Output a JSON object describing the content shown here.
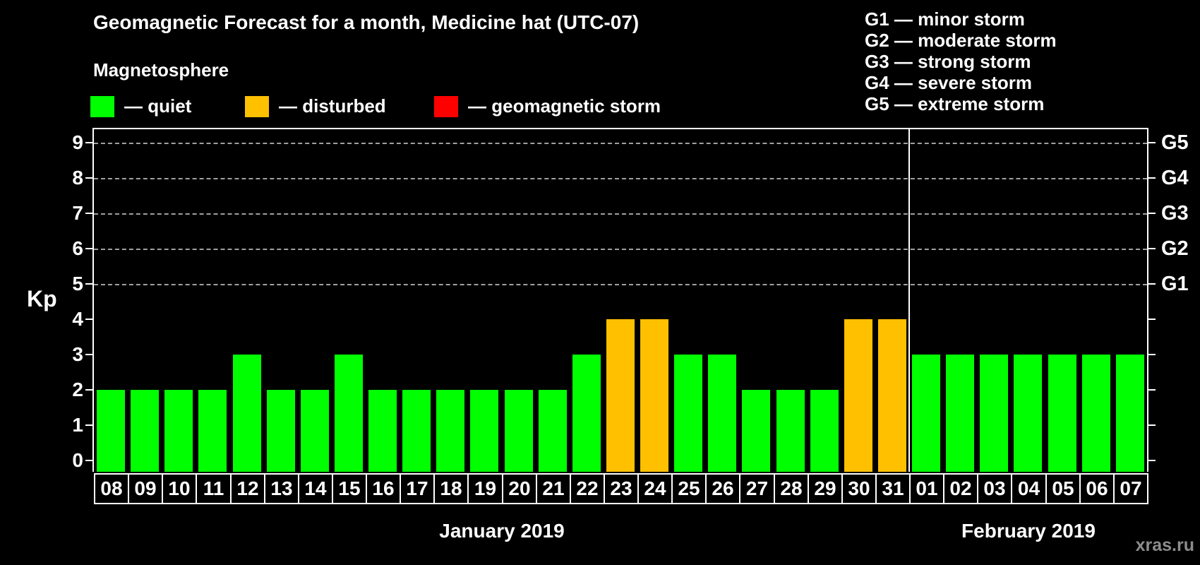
{
  "header": {
    "title": "Geomagnetic Forecast for a month, Medicine hat (UTC-07)"
  },
  "magnetosphere_legend": {
    "heading": "Magnetosphere",
    "items": [
      {
        "name": "quiet",
        "label": "— quiet",
        "color": "#00FF00"
      },
      {
        "name": "disturbed",
        "label": "— disturbed",
        "color": "#FFC000"
      },
      {
        "name": "geomagnetic-storm",
        "label": "— geomagnetic storm",
        "color": "#FF0000"
      }
    ]
  },
  "storm_scale_legend": [
    "G1 — minor storm",
    "G2 — moderate storm",
    "G3 — strong storm",
    "G4 — severe storm",
    "G5 — extreme storm"
  ],
  "watermark": "xras.ru",
  "colors": {
    "background": "#000000",
    "text": "#FFFFFF",
    "quiet": "#00FF00",
    "disturbed": "#FFC000",
    "storm": "#FF0000",
    "gridline": "#A0A0A0",
    "watermark_text": "#8C8C8C"
  },
  "chart_data": {
    "type": "bar",
    "ylabel": "Kp",
    "ylim": [
      -0.32,
      9.38
    ],
    "yticks": [
      0,
      1,
      2,
      3,
      4,
      5,
      6,
      7,
      8,
      9
    ],
    "gridlines_at_kp": [
      5,
      6,
      7,
      8,
      9
    ],
    "grid": "dashed horizontal lines only at storm levels Kp 5-9",
    "legend_position": "top-left",
    "right_axis": [
      {
        "kp": 5,
        "label": "G1"
      },
      {
        "kp": 6,
        "label": "G2"
      },
      {
        "kp": 7,
        "label": "G3"
      },
      {
        "kp": 8,
        "label": "G4"
      },
      {
        "kp": 9,
        "label": "G5"
      }
    ],
    "months": [
      {
        "label": "January 2019",
        "start_index": 0,
        "day_count": 24
      },
      {
        "label": "February 2019",
        "start_index": 24,
        "day_count": 7
      }
    ],
    "bars": [
      {
        "day": "08",
        "month": "January 2019",
        "kp": 2,
        "state": "quiet"
      },
      {
        "day": "09",
        "month": "January 2019",
        "kp": 2,
        "state": "quiet"
      },
      {
        "day": "10",
        "month": "January 2019",
        "kp": 2,
        "state": "quiet"
      },
      {
        "day": "11",
        "month": "January 2019",
        "kp": 2,
        "state": "quiet"
      },
      {
        "day": "12",
        "month": "January 2019",
        "kp": 3,
        "state": "quiet"
      },
      {
        "day": "13",
        "month": "January 2019",
        "kp": 2,
        "state": "quiet"
      },
      {
        "day": "14",
        "month": "January 2019",
        "kp": 2,
        "state": "quiet"
      },
      {
        "day": "15",
        "month": "January 2019",
        "kp": 3,
        "state": "quiet"
      },
      {
        "day": "16",
        "month": "January 2019",
        "kp": 2,
        "state": "quiet"
      },
      {
        "day": "17",
        "month": "January 2019",
        "kp": 2,
        "state": "quiet"
      },
      {
        "day": "18",
        "month": "January 2019",
        "kp": 2,
        "state": "quiet"
      },
      {
        "day": "19",
        "month": "January 2019",
        "kp": 2,
        "state": "quiet"
      },
      {
        "day": "20",
        "month": "January 2019",
        "kp": 2,
        "state": "quiet"
      },
      {
        "day": "21",
        "month": "January 2019",
        "kp": 2,
        "state": "quiet"
      },
      {
        "day": "22",
        "month": "January 2019",
        "kp": 3,
        "state": "quiet"
      },
      {
        "day": "23",
        "month": "January 2019",
        "kp": 4,
        "state": "disturbed"
      },
      {
        "day": "24",
        "month": "January 2019",
        "kp": 4,
        "state": "disturbed"
      },
      {
        "day": "25",
        "month": "January 2019",
        "kp": 3,
        "state": "quiet"
      },
      {
        "day": "26",
        "month": "January 2019",
        "kp": 3,
        "state": "quiet"
      },
      {
        "day": "27",
        "month": "January 2019",
        "kp": 2,
        "state": "quiet"
      },
      {
        "day": "28",
        "month": "January 2019",
        "kp": 2,
        "state": "quiet"
      },
      {
        "day": "29",
        "month": "January 2019",
        "kp": 2,
        "state": "quiet"
      },
      {
        "day": "30",
        "month": "January 2019",
        "kp": 4,
        "state": "disturbed"
      },
      {
        "day": "31",
        "month": "January 2019",
        "kp": 4,
        "state": "disturbed"
      },
      {
        "day": "01",
        "month": "February 2019",
        "kp": 3,
        "state": "quiet"
      },
      {
        "day": "02",
        "month": "February 2019",
        "kp": 3,
        "state": "quiet"
      },
      {
        "day": "03",
        "month": "February 2019",
        "kp": 3,
        "state": "quiet"
      },
      {
        "day": "04",
        "month": "February 2019",
        "kp": 3,
        "state": "quiet"
      },
      {
        "day": "05",
        "month": "February 2019",
        "kp": 3,
        "state": "quiet"
      },
      {
        "day": "06",
        "month": "February 2019",
        "kp": 3,
        "state": "quiet"
      },
      {
        "day": "07",
        "month": "February 2019",
        "kp": 3,
        "state": "quiet"
      }
    ]
  }
}
